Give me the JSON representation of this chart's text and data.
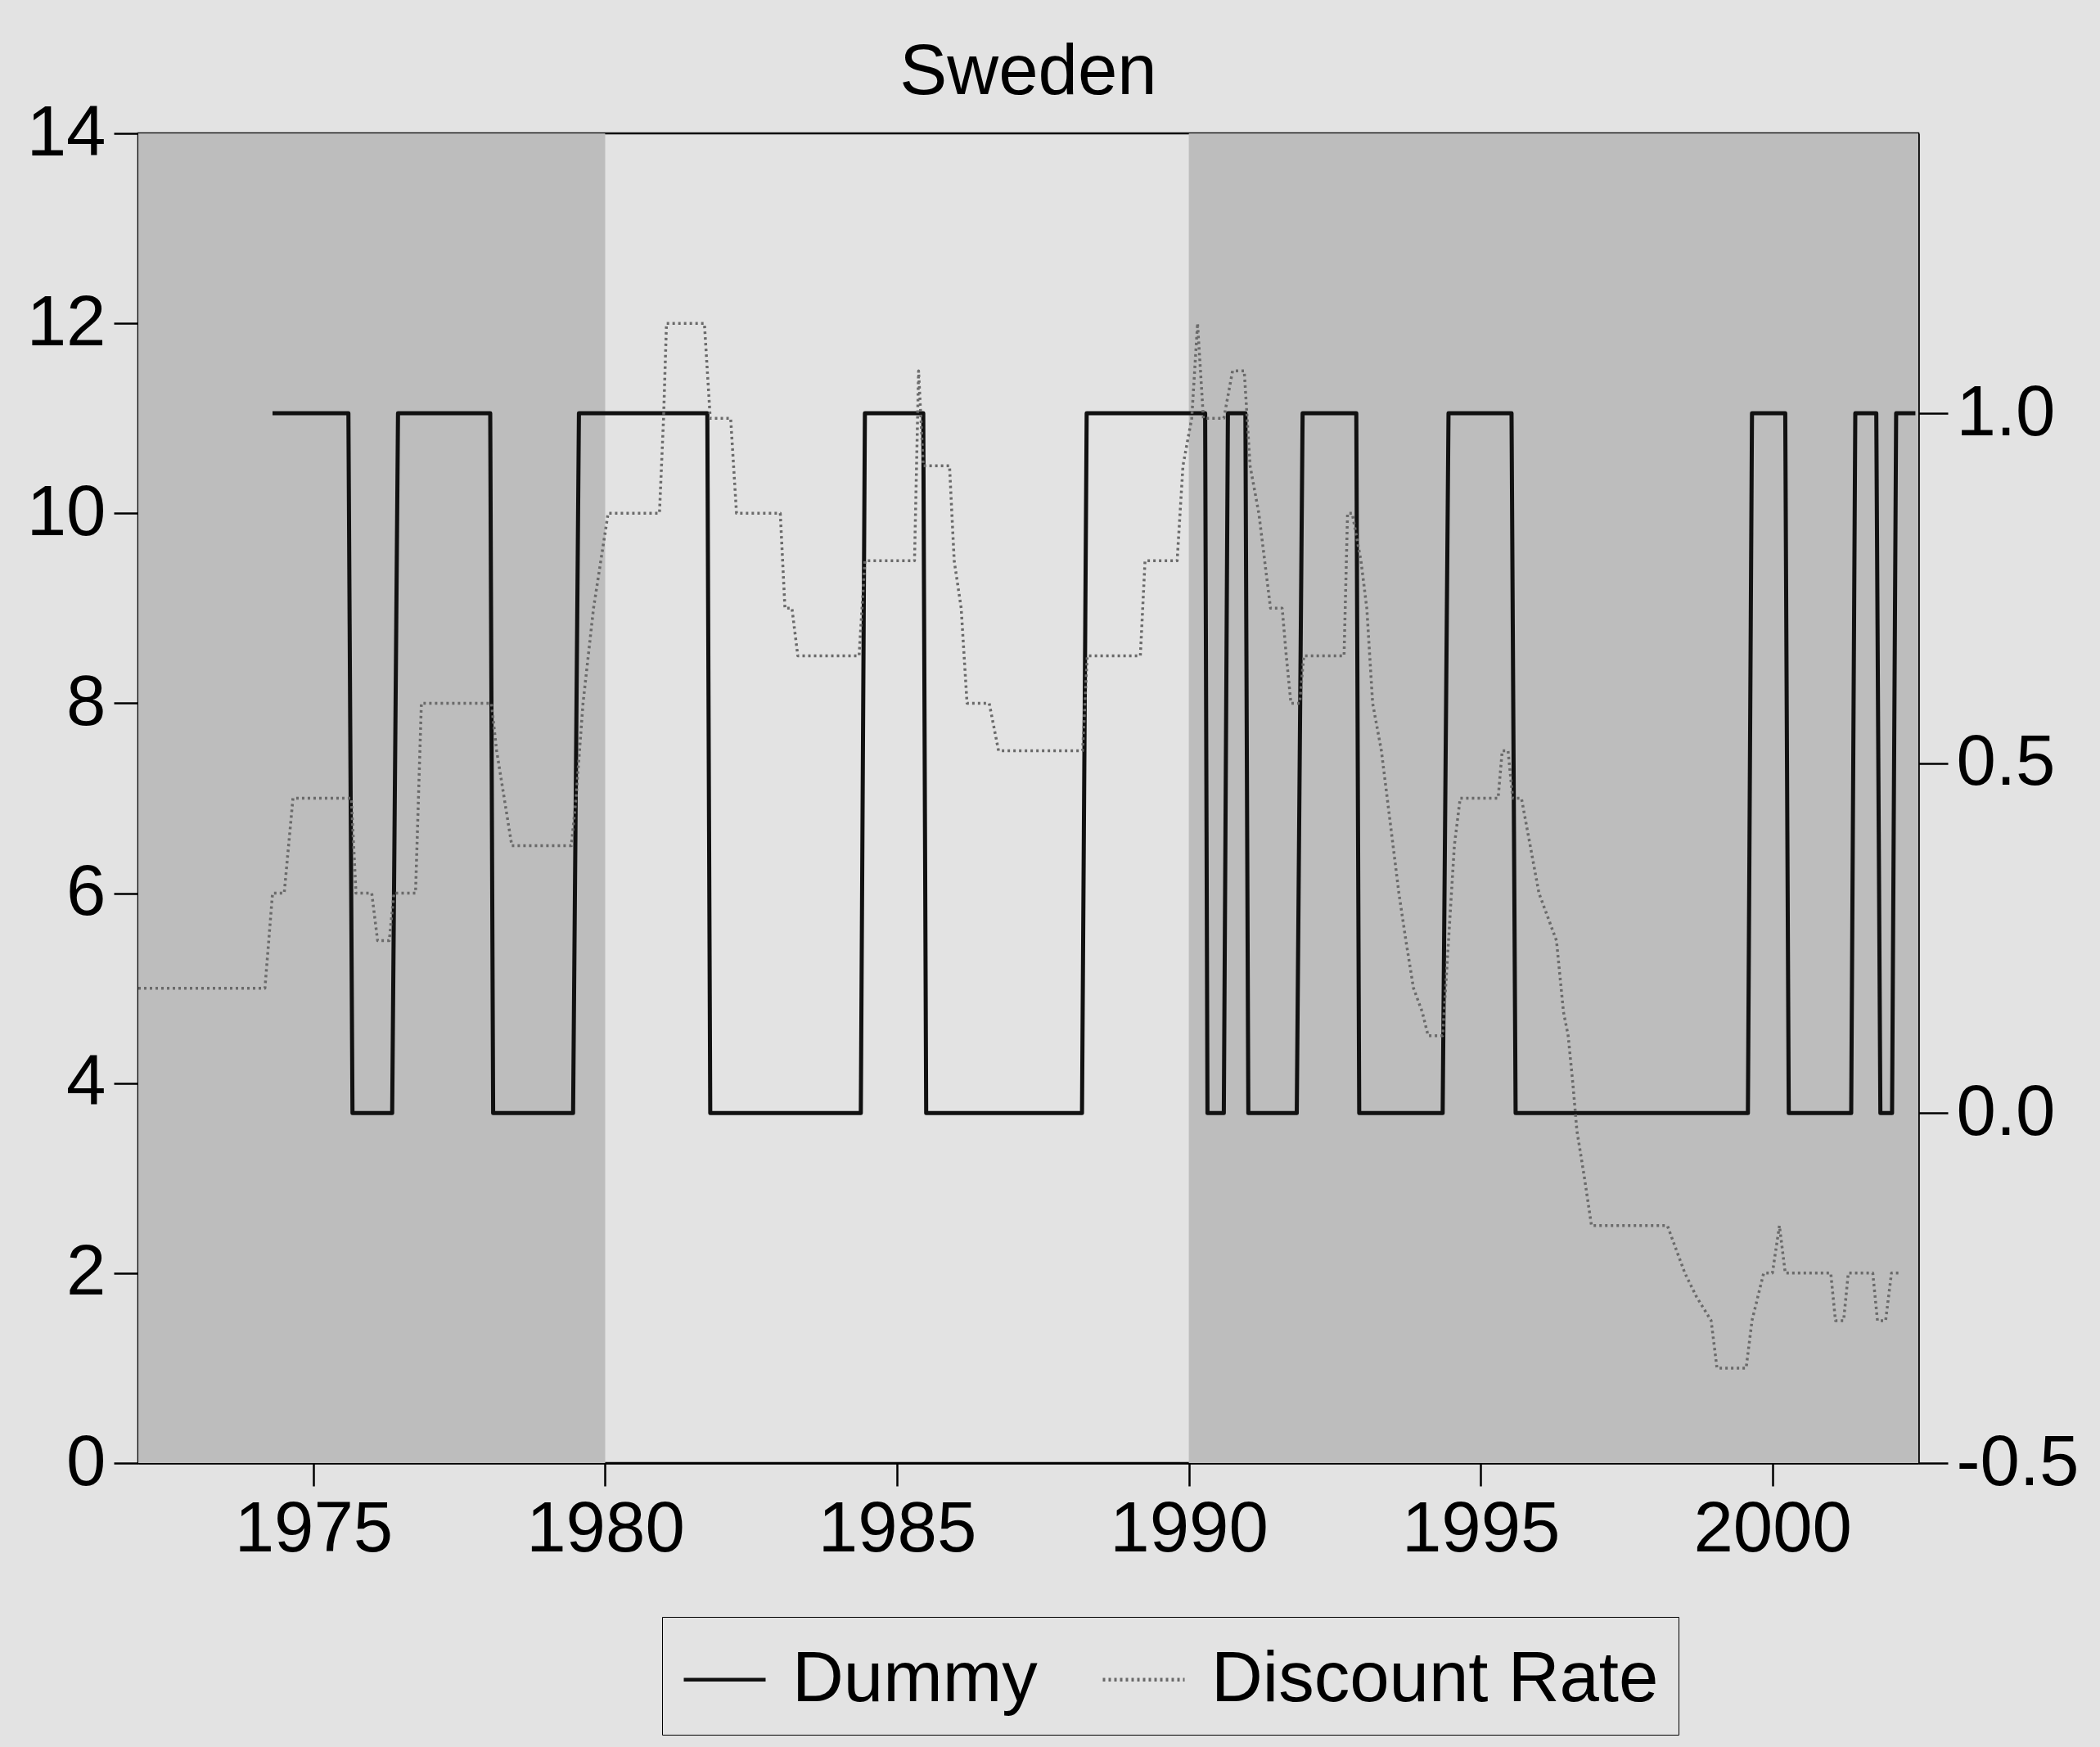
{
  "chart_data": {
    "type": "line",
    "title": "Sweden",
    "xlim": [
      1972,
      2002.5
    ],
    "xticks": [
      1975,
      1980,
      1985,
      1990,
      1995,
      2000
    ],
    "ylim": [
      0,
      14
    ],
    "yticks": [
      0,
      2,
      4,
      6,
      8,
      10,
      12,
      14
    ],
    "y2lim": [
      -0.5,
      1.4
    ],
    "y2ticks": [
      -0.5,
      {
        "value": 0,
        "label": "0.0"
      },
      0.5,
      {
        "value": 1,
        "label": "1.0"
      }
    ],
    "bands": [
      {
        "axis": "x",
        "from": 1972,
        "to": 1980,
        "color": "#bdbdbd"
      },
      {
        "axis": "x",
        "from": 1990,
        "to": 2002.5,
        "color": "#bdbdbd"
      }
    ],
    "legend": "bottom",
    "series": [
      {
        "name": "Dummy",
        "color": "#111111",
        "axis": "y2",
        "line_style": "solid",
        "x": [
          1974.3,
          1975.6,
          1975.67,
          1976.35,
          1976.45,
          1978.03,
          1978.08,
          1979.45,
          1979.55,
          1981.75,
          1981.8,
          1984.38,
          1984.45,
          1985.45,
          1985.5,
          1988.17,
          1988.25,
          1990.28,
          1990.32,
          1990.6,
          1990.67,
          1990.97,
          1991.02,
          1991.85,
          1991.95,
          1992.87,
          1992.92,
          1994.35,
          1994.45,
          1995.53,
          1995.6,
          1999.58,
          1999.65,
          2000.22,
          2000.28,
          2001.35,
          2001.42,
          2001.78,
          2001.85,
          2002.05,
          2002.12,
          2002.45
        ],
        "values": [
          1,
          1,
          0,
          0,
          1,
          1,
          0,
          0,
          1,
          1,
          0,
          0,
          1,
          1,
          0,
          0,
          1,
          1,
          0,
          0,
          1,
          1,
          0,
          0,
          1,
          1,
          0,
          0,
          1,
          1,
          0,
          0,
          1,
          1,
          0,
          0,
          1,
          1,
          0,
          0,
          1,
          1
        ]
      },
      {
        "name": "Discount Rate",
        "color": "#6a6a6a",
        "line_style": "dotted",
        "x": [
          1972,
          1974.17,
          1974.3,
          1974.5,
          1974.65,
          1975.65,
          1975.73,
          1976,
          1976.1,
          1976.3,
          1976.38,
          1976.75,
          1976.85,
          1978.05,
          1978.14,
          1978.27,
          1978.4,
          1979.42,
          1979.5,
          1979.62,
          1979.8,
          1980.05,
          1980.93,
          1981,
          1981.05,
          1981.7,
          1981.8,
          1982.15,
          1982.25,
          1983,
          1983.08,
          1983.2,
          1983.3,
          1984.35,
          1984.45,
          1985.3,
          1985.37,
          1985.45,
          1985.9,
          1985.98,
          1986.1,
          1986.2,
          1986.58,
          1986.66,
          1986.74,
          1988.18,
          1988.26,
          1989.17,
          1989.25,
          1989.8,
          1989.9,
          1990.05,
          1990.15,
          1990.25,
          1990.6,
          1990.75,
          1990.95,
          1991.05,
          1991.2,
          1991.3,
          1991.4,
          1991.6,
          1991.67,
          1991.75,
          1991.9,
          1991.97,
          1992.66,
          1992.72,
          1992.8,
          1992.95,
          1993.05,
          1993.15,
          1993.3,
          1993.4,
          1993.5,
          1993.6,
          1993.72,
          1993.85,
          1994,
          1994.1,
          1994.35,
          1994.45,
          1994.55,
          1994.65,
          1995.3,
          1995.37,
          1995.47,
          1995.55,
          1995.7,
          1995.85,
          1996,
          1996.15,
          1996.3,
          1996.42,
          1996.5,
          1996.58,
          1996.65,
          1996.78,
          1996.9,
          1998.2,
          1998.35,
          1998.5,
          1998.7,
          1998.95,
          1999.05,
          1999.55,
          1999.65,
          1999.85,
          2000,
          2000.12,
          2000.22,
          2001,
          2001.08,
          2001.22,
          2001.3,
          2001.72,
          2001.8,
          2001.94,
          2002.04,
          2002.2
        ],
        "values": [
          5,
          5,
          6,
          6,
          7,
          7,
          6,
          6,
          5.5,
          5.5,
          6,
          6,
          8,
          8,
          7.5,
          7,
          6.5,
          6.5,
          7,
          8,
          9,
          10,
          10,
          11,
          12,
          12,
          11,
          11,
          10,
          10,
          9,
          9,
          8.5,
          8.5,
          9.5,
          9.5,
          11.5,
          10.5,
          10.5,
          9.5,
          9,
          8,
          8,
          7.75,
          7.5,
          7.5,
          8.5,
          8.5,
          9.5,
          9.5,
          10.5,
          11,
          12,
          11,
          11,
          11.5,
          11.5,
          10.5,
          10,
          9.5,
          9,
          9,
          8.5,
          8,
          8,
          8.5,
          8.5,
          10,
          10,
          9.5,
          9,
          8,
          7.5,
          7,
          6.5,
          6,
          5.5,
          5,
          4.75,
          4.5,
          4.5,
          5.5,
          6.5,
          7,
          7,
          7.5,
          7.5,
          7,
          7,
          6.5,
          6,
          5.75,
          5.5,
          4.75,
          4.5,
          4,
          3.5,
          3,
          2.5,
          2.5,
          2.25,
          2,
          1.75,
          1.5,
          1,
          1,
          1.5,
          2,
          2,
          2.5,
          2,
          2,
          1.5,
          1.5,
          2,
          2,
          1.5,
          1.5,
          2,
          2
        ]
      }
    ]
  }
}
